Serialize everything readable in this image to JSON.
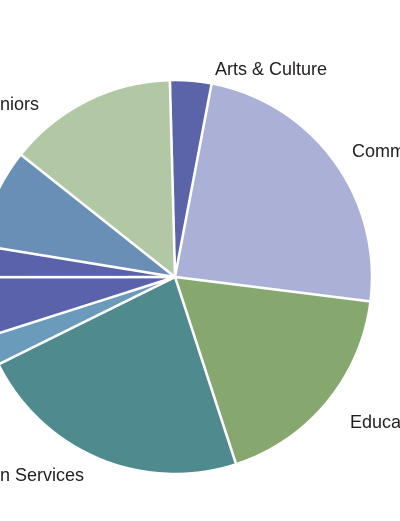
{
  "chart_data": {
    "type": "pie",
    "categories": [
      "Arts & Culture",
      "Comm",
      "Educa",
      "n Services",
      null,
      null,
      null,
      null,
      "niors"
    ],
    "values": [
      3.4,
      24.0,
      18.0,
      22.7,
      2.4,
      4.9,
      2.6,
      8.1,
      13.9
    ],
    "colors": [
      "#5b64a8",
      "#aab0d6",
      "#86a86e",
      "#4f8b8e",
      "#6a9bbb",
      "#5a62ab",
      "#5a62ab",
      "#6a8fb7",
      "#b2c8a5"
    ]
  }
}
